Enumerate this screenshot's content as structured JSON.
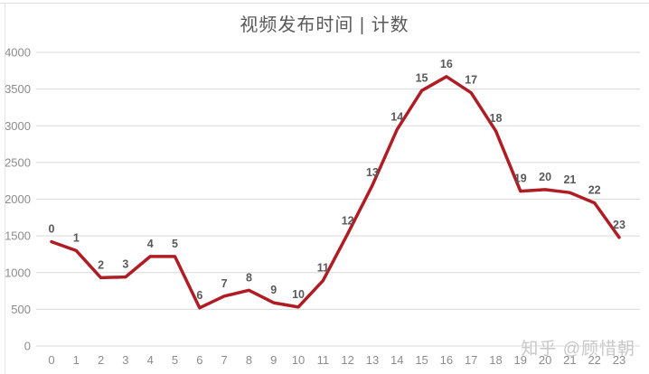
{
  "title": "视频发布时间 | 计数",
  "watermark": "知乎 @顾惜朝",
  "colors": {
    "line": "#b01c23",
    "gridline": "#d9d9d9",
    "axis_label": "#8c8c8c",
    "point_label": "#595959",
    "title": "#595959",
    "watermark": "#c8c8c8",
    "background": "#ffffff"
  },
  "chart_data": {
    "type": "line",
    "title": "视频发布时间 | 计数",
    "categories": [
      0,
      1,
      2,
      3,
      4,
      5,
      6,
      7,
      8,
      9,
      10,
      11,
      12,
      13,
      14,
      15,
      16,
      17,
      18,
      19,
      20,
      21,
      22,
      23
    ],
    "series": [
      {
        "name": "计数",
        "values": [
          1420,
          1300,
          930,
          940,
          1220,
          1220,
          520,
          680,
          760,
          590,
          530,
          890,
          1530,
          2190,
          2950,
          3480,
          3670,
          3450,
          2930,
          2110,
          2130,
          2090,
          1950,
          1480
        ]
      }
    ],
    "point_labels": [
      "0",
      "1",
      "2",
      "3",
      "4",
      "5",
      "6",
      "7",
      "8",
      "9",
      "10",
      "11",
      "12",
      "13",
      "14",
      "15",
      "16",
      "17",
      "18",
      "19",
      "20",
      "21",
      "22",
      "23"
    ],
    "y_ticks": [
      0,
      500,
      1000,
      1500,
      2000,
      2500,
      3000,
      3500,
      4000
    ],
    "ylim": [
      0,
      4000
    ],
    "xlabel": "",
    "ylabel": "",
    "grid": true,
    "legend_position": "none",
    "line_color": "#b01c23",
    "line_width": 3.5
  }
}
